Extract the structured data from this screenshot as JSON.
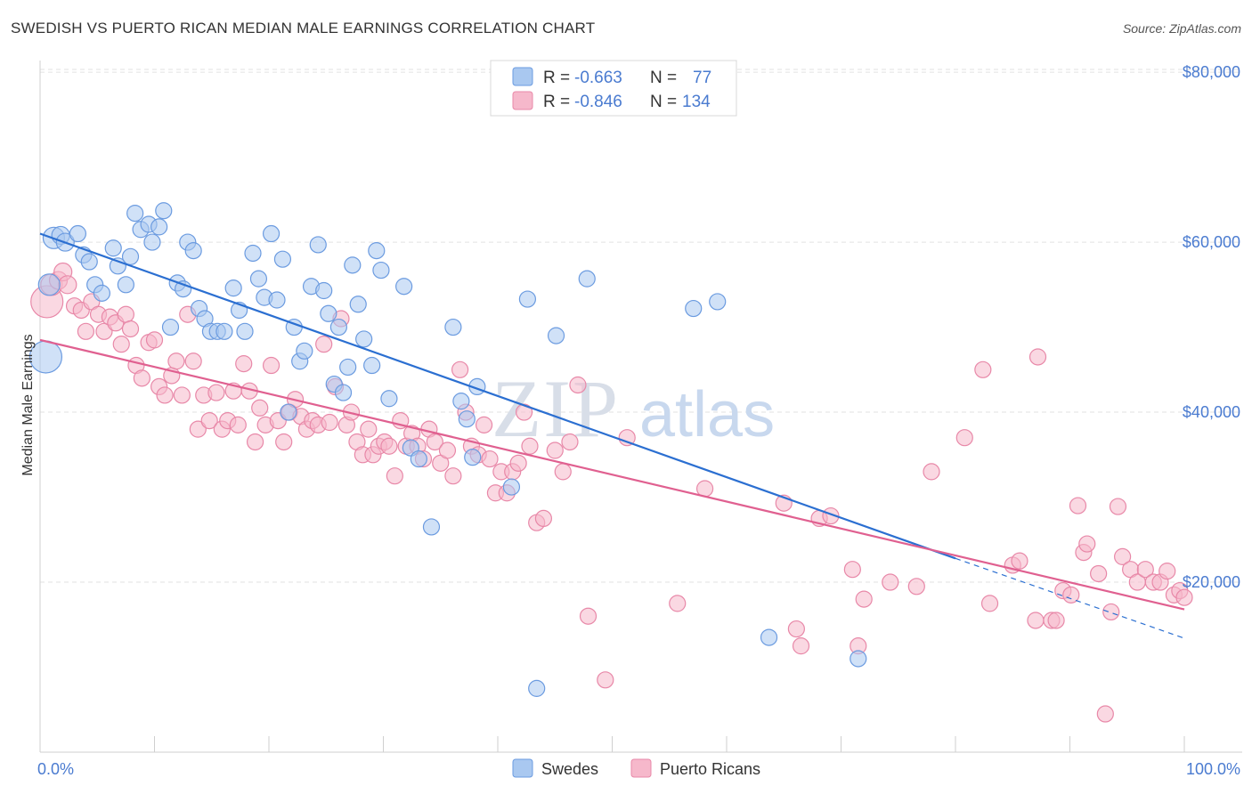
{
  "header": {
    "title": "SWEDISH VS PUERTO RICAN MEDIAN MALE EARNINGS CORRELATION CHART",
    "source": "Source: ZipAtlas.com"
  },
  "watermark": {
    "zip": "ZIP",
    "atlas": "atlas"
  },
  "legend": {
    "r_label": "R = ",
    "n_label": "N = ",
    "rows": [
      {
        "r": "-0.663",
        "n": "77",
        "color": "#a9c8f0"
      },
      {
        "r": "-0.846",
        "n": "134",
        "color": "#f6b8cb"
      }
    ]
  },
  "bottom_legend": [
    "Swedes",
    "Puerto Ricans"
  ],
  "colors": {
    "swedes_fill": "#a9c8f0",
    "swedes_stroke": "#6b9be0",
    "swedes_line": "#2b6fd1",
    "pr_fill": "#f6b8cb",
    "pr_stroke": "#e888a8",
    "pr_line": "#e06090",
    "axis_text": "#4a7bd0"
  },
  "chart_data": {
    "type": "scatter",
    "title": "SWEDISH VS PUERTO RICAN MEDIAN MALE EARNINGS CORRELATION CHART",
    "xlabel": "",
    "ylabel": "Median Male Earnings",
    "xlim": [
      0,
      100
    ],
    "ylim": [
      0,
      82000
    ],
    "x_tick_labels": [
      "0.0%",
      "100.0%"
    ],
    "y_ticks": [
      20000,
      40000,
      60000,
      80000
    ],
    "y_tick_labels": [
      "$20,000",
      "$40,000",
      "$60,000",
      "$80,000"
    ],
    "grid": "horizontal dashed",
    "legend_position": "top-center",
    "series": [
      {
        "name": "Swedes",
        "r": -0.663,
        "n": 77,
        "trend": {
          "x0": 0,
          "y0": 61000,
          "x1": 80,
          "y1": 22800,
          "dashed_to_x": 100,
          "dashed_to_y": 13400
        },
        "points": [
          [
            0.5,
            46500,
            18
          ],
          [
            0.8,
            55000,
            12
          ],
          [
            1.2,
            60500,
            12
          ],
          [
            1.8,
            60800,
            10
          ],
          [
            2.2,
            60000,
            10
          ],
          [
            3.3,
            61000,
            9
          ],
          [
            3.8,
            58500,
            9
          ],
          [
            4.3,
            57700,
            9
          ],
          [
            4.8,
            55000,
            9
          ],
          [
            5.4,
            54000,
            9
          ],
          [
            6.4,
            59300,
            9
          ],
          [
            6.8,
            57200,
            9
          ],
          [
            7.5,
            55000,
            9
          ],
          [
            7.9,
            58300,
            9
          ],
          [
            8.3,
            63400,
            9
          ],
          [
            8.8,
            61500,
            9
          ],
          [
            9.5,
            62100,
            9
          ],
          [
            9.8,
            60000,
            9
          ],
          [
            10.4,
            61800,
            9
          ],
          [
            10.8,
            63700,
            9
          ],
          [
            11.4,
            50000,
            9
          ],
          [
            12.0,
            55200,
            9
          ],
          [
            12.5,
            54500,
            9
          ],
          [
            12.9,
            60000,
            9
          ],
          [
            13.4,
            59000,
            9
          ],
          [
            13.9,
            52200,
            9
          ],
          [
            14.4,
            51000,
            9
          ],
          [
            14.9,
            49500,
            9
          ],
          [
            15.5,
            49500,
            9
          ],
          [
            16.1,
            49500,
            9
          ],
          [
            16.9,
            54600,
            9
          ],
          [
            17.4,
            52000,
            9
          ],
          [
            17.9,
            49500,
            9
          ],
          [
            18.6,
            58700,
            9
          ],
          [
            19.1,
            55700,
            9
          ],
          [
            19.6,
            53500,
            9
          ],
          [
            20.2,
            61000,
            9
          ],
          [
            20.7,
            53200,
            9
          ],
          [
            21.2,
            58000,
            9
          ],
          [
            21.7,
            40000,
            9
          ],
          [
            22.2,
            50000,
            9
          ],
          [
            22.7,
            46000,
            9
          ],
          [
            23.1,
            47200,
            9
          ],
          [
            23.7,
            54800,
            9
          ],
          [
            24.3,
            59700,
            9
          ],
          [
            24.8,
            54300,
            9
          ],
          [
            25.2,
            51600,
            9
          ],
          [
            25.7,
            43300,
            9
          ],
          [
            26.1,
            50000,
            9
          ],
          [
            26.5,
            42300,
            9
          ],
          [
            26.9,
            45300,
            9
          ],
          [
            27.3,
            57300,
            9
          ],
          [
            27.8,
            52700,
            9
          ],
          [
            28.3,
            48600,
            9
          ],
          [
            29.0,
            45500,
            9
          ],
          [
            29.4,
            59000,
            9
          ],
          [
            29.8,
            56700,
            9
          ],
          [
            30.5,
            41600,
            9
          ],
          [
            31.8,
            54800,
            9
          ],
          [
            32.4,
            35800,
            9
          ],
          [
            33.1,
            34500,
            9
          ],
          [
            34.2,
            26500,
            9
          ],
          [
            36.1,
            50000,
            9
          ],
          [
            37.8,
            34700,
            9
          ],
          [
            36.8,
            41300,
            9
          ],
          [
            37.3,
            39200,
            9
          ],
          [
            38.2,
            43000,
            9
          ],
          [
            41.2,
            31200,
            9
          ],
          [
            42.6,
            53300,
            9
          ],
          [
            43.4,
            7500,
            9
          ],
          [
            45.1,
            49000,
            9
          ],
          [
            47.8,
            55700,
            9
          ],
          [
            57.1,
            52200,
            9
          ],
          [
            59.2,
            53000,
            9
          ],
          [
            63.7,
            13500,
            9
          ],
          [
            71.5,
            11000,
            9
          ]
        ]
      },
      {
        "name": "Puerto Ricans",
        "r": -0.846,
        "n": 134,
        "trend": {
          "x0": 0,
          "y0": 48500,
          "x1": 100,
          "y1": 16800
        },
        "points": [
          [
            0.6,
            53000,
            18
          ],
          [
            1.0,
            55000,
            12
          ],
          [
            1.6,
            55500,
            10
          ],
          [
            2.0,
            56500,
            10
          ],
          [
            2.4,
            55000,
            10
          ],
          [
            3.0,
            52500,
            9
          ],
          [
            3.6,
            52000,
            9
          ],
          [
            4.0,
            49500,
            9
          ],
          [
            4.5,
            53000,
            9
          ],
          [
            5.1,
            51500,
            9
          ],
          [
            5.6,
            49500,
            9
          ],
          [
            6.1,
            51200,
            9
          ],
          [
            6.6,
            50500,
            9
          ],
          [
            7.1,
            48000,
            9
          ],
          [
            7.5,
            51500,
            9
          ],
          [
            7.9,
            49800,
            9
          ],
          [
            8.4,
            45500,
            9
          ],
          [
            8.9,
            44000,
            9
          ],
          [
            9.5,
            48200,
            9
          ],
          [
            10.0,
            48500,
            9
          ],
          [
            10.4,
            43000,
            9
          ],
          [
            10.9,
            42000,
            9
          ],
          [
            11.5,
            44300,
            9
          ],
          [
            11.9,
            46000,
            9
          ],
          [
            12.4,
            42000,
            9
          ],
          [
            12.9,
            51500,
            9
          ],
          [
            13.4,
            46000,
            9
          ],
          [
            13.8,
            38000,
            9
          ],
          [
            14.3,
            42000,
            9
          ],
          [
            14.8,
            39000,
            9
          ],
          [
            15.4,
            42300,
            9
          ],
          [
            15.9,
            38000,
            9
          ],
          [
            16.4,
            39000,
            9
          ],
          [
            16.9,
            42500,
            9
          ],
          [
            17.3,
            38500,
            9
          ],
          [
            17.8,
            45700,
            9
          ],
          [
            18.3,
            42500,
            9
          ],
          [
            18.8,
            36500,
            9
          ],
          [
            19.2,
            40500,
            9
          ],
          [
            19.7,
            38500,
            9
          ],
          [
            20.2,
            45500,
            9
          ],
          [
            20.8,
            39000,
            9
          ],
          [
            21.3,
            36500,
            9
          ],
          [
            21.8,
            40000,
            9
          ],
          [
            22.3,
            41500,
            9
          ],
          [
            22.8,
            39500,
            9
          ],
          [
            23.3,
            38000,
            9
          ],
          [
            23.8,
            39000,
            9
          ],
          [
            24.3,
            38500,
            9
          ],
          [
            24.8,
            48000,
            9
          ],
          [
            25.3,
            38800,
            9
          ],
          [
            25.8,
            43000,
            9
          ],
          [
            26.3,
            51000,
            9
          ],
          [
            26.8,
            38500,
            9
          ],
          [
            27.2,
            40000,
            9
          ],
          [
            27.7,
            36500,
            9
          ],
          [
            28.2,
            35000,
            9
          ],
          [
            28.7,
            38000,
            9
          ],
          [
            29.1,
            35000,
            9
          ],
          [
            29.6,
            36000,
            9
          ],
          [
            30.1,
            36500,
            9
          ],
          [
            30.5,
            36000,
            9
          ],
          [
            31.0,
            32500,
            9
          ],
          [
            31.5,
            39000,
            9
          ],
          [
            32.0,
            36000,
            9
          ],
          [
            32.5,
            37500,
            9
          ],
          [
            33.0,
            36000,
            9
          ],
          [
            33.5,
            34500,
            9
          ],
          [
            34.0,
            38000,
            9
          ],
          [
            34.5,
            36500,
            9
          ],
          [
            35.0,
            34000,
            9
          ],
          [
            35.6,
            35500,
            9
          ],
          [
            36.1,
            32500,
            9
          ],
          [
            36.7,
            45000,
            9
          ],
          [
            37.2,
            40000,
            9
          ],
          [
            37.7,
            36000,
            9
          ],
          [
            38.3,
            35000,
            9
          ],
          [
            38.8,
            38500,
            9
          ],
          [
            39.3,
            34500,
            9
          ],
          [
            39.8,
            30500,
            9
          ],
          [
            40.3,
            33000,
            9
          ],
          [
            40.8,
            30500,
            9
          ],
          [
            41.3,
            33000,
            9
          ],
          [
            41.8,
            34000,
            9
          ],
          [
            42.3,
            40000,
            9
          ],
          [
            42.8,
            36000,
            9
          ],
          [
            43.4,
            27000,
            9
          ],
          [
            44.0,
            27500,
            9
          ],
          [
            45.0,
            35500,
            9
          ],
          [
            45.7,
            33000,
            9
          ],
          [
            46.3,
            36500,
            9
          ],
          [
            47.0,
            43200,
            9
          ],
          [
            47.9,
            16000,
            9
          ],
          [
            49.4,
            8500,
            9
          ],
          [
            51.3,
            37000,
            9
          ],
          [
            55.7,
            17500,
            9
          ],
          [
            58.1,
            31000,
            9
          ],
          [
            65.0,
            29300,
            9
          ],
          [
            66.1,
            14500,
            9
          ],
          [
            66.5,
            12500,
            9
          ],
          [
            68.1,
            27500,
            9
          ],
          [
            69.1,
            27800,
            9
          ],
          [
            71.0,
            21500,
            9
          ],
          [
            71.5,
            12500,
            9
          ],
          [
            72.0,
            18000,
            9
          ],
          [
            74.3,
            20000,
            9
          ],
          [
            76.6,
            19500,
            9
          ],
          [
            77.9,
            33000,
            9
          ],
          [
            80.8,
            37000,
            9
          ],
          [
            82.4,
            45000,
            9
          ],
          [
            83.0,
            17500,
            9
          ],
          [
            85.0,
            22000,
            9
          ],
          [
            85.6,
            22500,
            9
          ],
          [
            87.0,
            15500,
            9
          ],
          [
            88.4,
            15500,
            9
          ],
          [
            87.2,
            46500,
            9
          ],
          [
            88.8,
            15500,
            9
          ],
          [
            89.4,
            19000,
            9
          ],
          [
            90.1,
            18500,
            9
          ],
          [
            90.7,
            29000,
            9
          ],
          [
            91.2,
            23500,
            9
          ],
          [
            91.5,
            24500,
            9
          ],
          [
            92.5,
            21000,
            9
          ],
          [
            93.6,
            16500,
            9
          ],
          [
            93.1,
            4500,
            9
          ],
          [
            94.2,
            28900,
            9
          ],
          [
            94.6,
            23000,
            9
          ],
          [
            95.3,
            21500,
            9
          ],
          [
            95.9,
            20000,
            9
          ],
          [
            96.6,
            21500,
            9
          ],
          [
            97.3,
            20000,
            9
          ],
          [
            97.9,
            20000,
            9
          ],
          [
            98.5,
            21300,
            9
          ],
          [
            99.1,
            18500,
            9
          ],
          [
            99.6,
            19000,
            9
          ],
          [
            100.0,
            18200,
            9
          ]
        ]
      }
    ]
  }
}
